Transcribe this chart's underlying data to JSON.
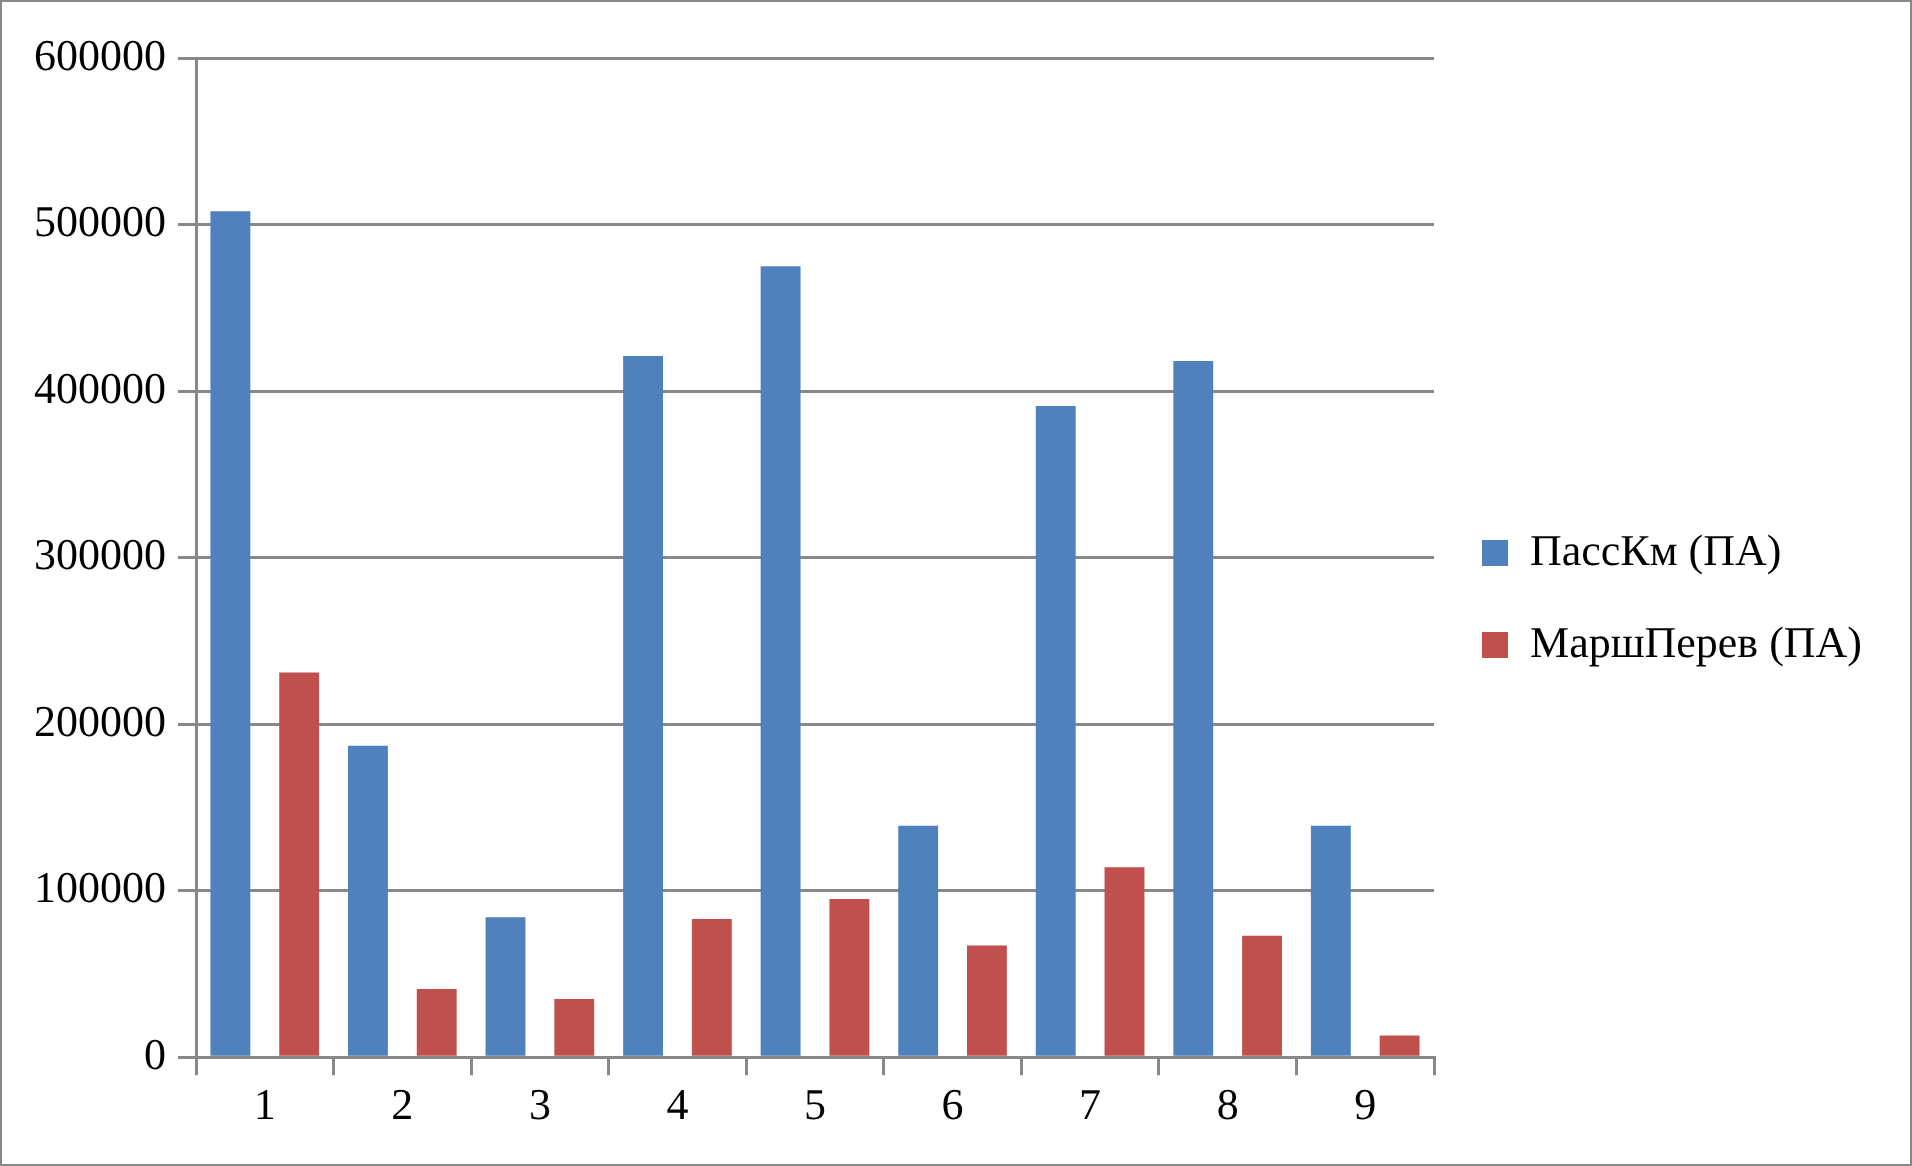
{
  "chart_data": {
    "type": "bar",
    "categories": [
      "1",
      "2",
      "3",
      "4",
      "5",
      "6",
      "7",
      "8",
      "9"
    ],
    "series": [
      {
        "name": "ПассКм (ПА)",
        "color": "#4f81bd",
        "values": [
          508000,
          187000,
          84000,
          421000,
          475000,
          139000,
          391000,
          418000,
          139000
        ]
      },
      {
        "name": "МаршПерев (ПА)",
        "color": "#c0504d",
        "values": [
          231000,
          41000,
          35000,
          83000,
          95000,
          67000,
          114000,
          73000,
          13000
        ]
      }
    ],
    "ylim": [
      0,
      600000
    ],
    "yticks": [
      0,
      100000,
      200000,
      300000,
      400000,
      500000,
      600000
    ],
    "grid": "y",
    "legend": "right"
  }
}
